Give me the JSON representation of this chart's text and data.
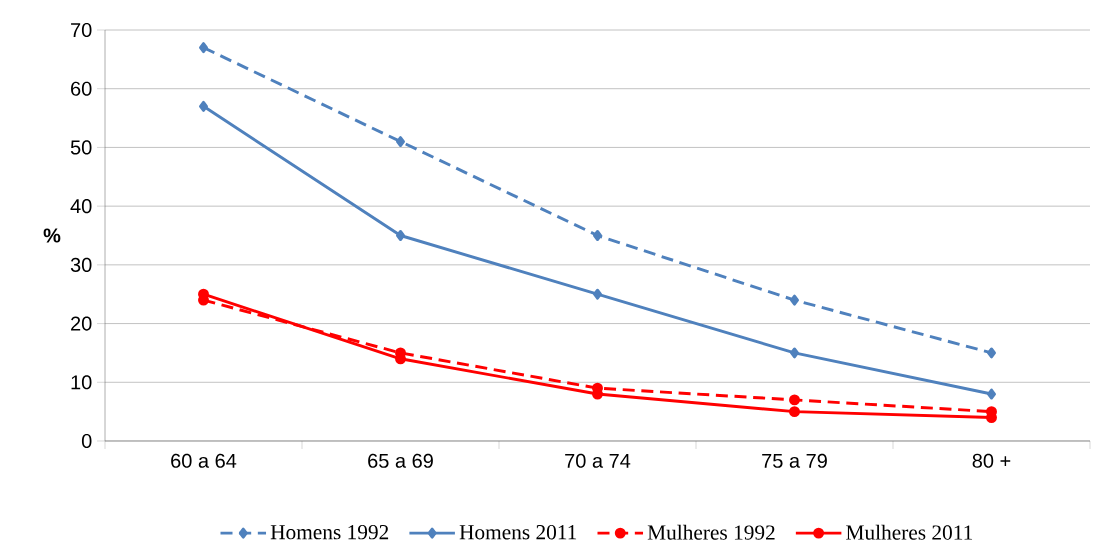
{
  "chart_data": {
    "type": "line",
    "ylabel": "%",
    "categories": [
      "60 a 64",
      "65 a 69",
      "70 a 74",
      "75 a 79",
      "80 +"
    ],
    "series": [
      {
        "name": "Homens 1992",
        "color": "#4f81bd",
        "line_style": "dashed",
        "marker": "diamond",
        "values": [
          67,
          51,
          35,
          24,
          15
        ]
      },
      {
        "name": "Homens 2011",
        "color": "#4f81bd",
        "line_style": "solid",
        "marker": "diamond",
        "values": [
          57,
          35,
          25,
          15,
          8
        ]
      },
      {
        "name": "Mulheres 1992",
        "color": "#ff0000",
        "line_style": "dashed",
        "marker": "circle",
        "values": [
          24,
          15,
          9,
          7,
          5
        ]
      },
      {
        "name": "Mulheres 2011",
        "color": "#ff0000",
        "line_style": "solid",
        "marker": "circle",
        "values": [
          25,
          14,
          8,
          5,
          4
        ]
      }
    ],
    "ylim": [
      0,
      70
    ],
    "yticks": [
      0,
      10,
      20,
      30,
      40,
      50,
      60,
      70
    ],
    "grid": "y",
    "legend": "bottom"
  }
}
